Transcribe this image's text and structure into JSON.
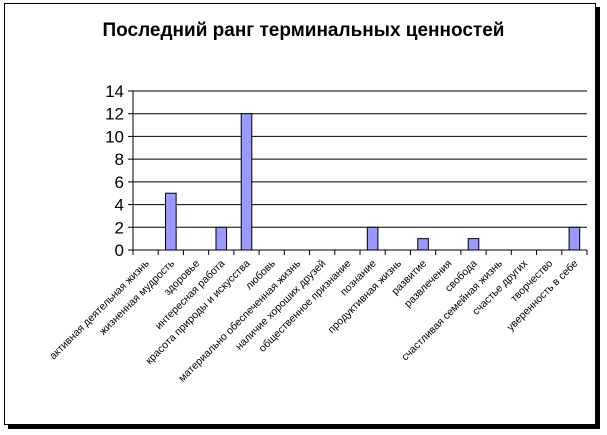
{
  "chart_data": {
    "type": "bar",
    "title": "Последний ранг терминальных ценностей",
    "xlabel": "",
    "ylabel": "",
    "ylim": [
      0,
      14
    ],
    "yticks": [
      0,
      2,
      4,
      6,
      8,
      10,
      12,
      14
    ],
    "grid": true,
    "bar_color": "#9999ff",
    "categories": [
      "активная деятельная жизнь",
      "жизненная мудрость",
      "здоровье",
      "интересная работа",
      "красота природы и искусства",
      "любовь",
      "материально обеспеченная жизнь",
      "наличие хороших друзей",
      "общественное признание",
      "познание",
      "продуктивная жизнь",
      "развитие",
      "развлечения",
      "свобода",
      "счастливая семейная жизнь",
      "счастье других",
      "творчество",
      "уверенность в себе"
    ],
    "values": [
      0,
      5,
      0,
      2,
      12,
      0,
      0,
      0,
      0,
      2,
      0,
      1,
      0,
      1,
      0,
      0,
      0,
      2
    ]
  }
}
